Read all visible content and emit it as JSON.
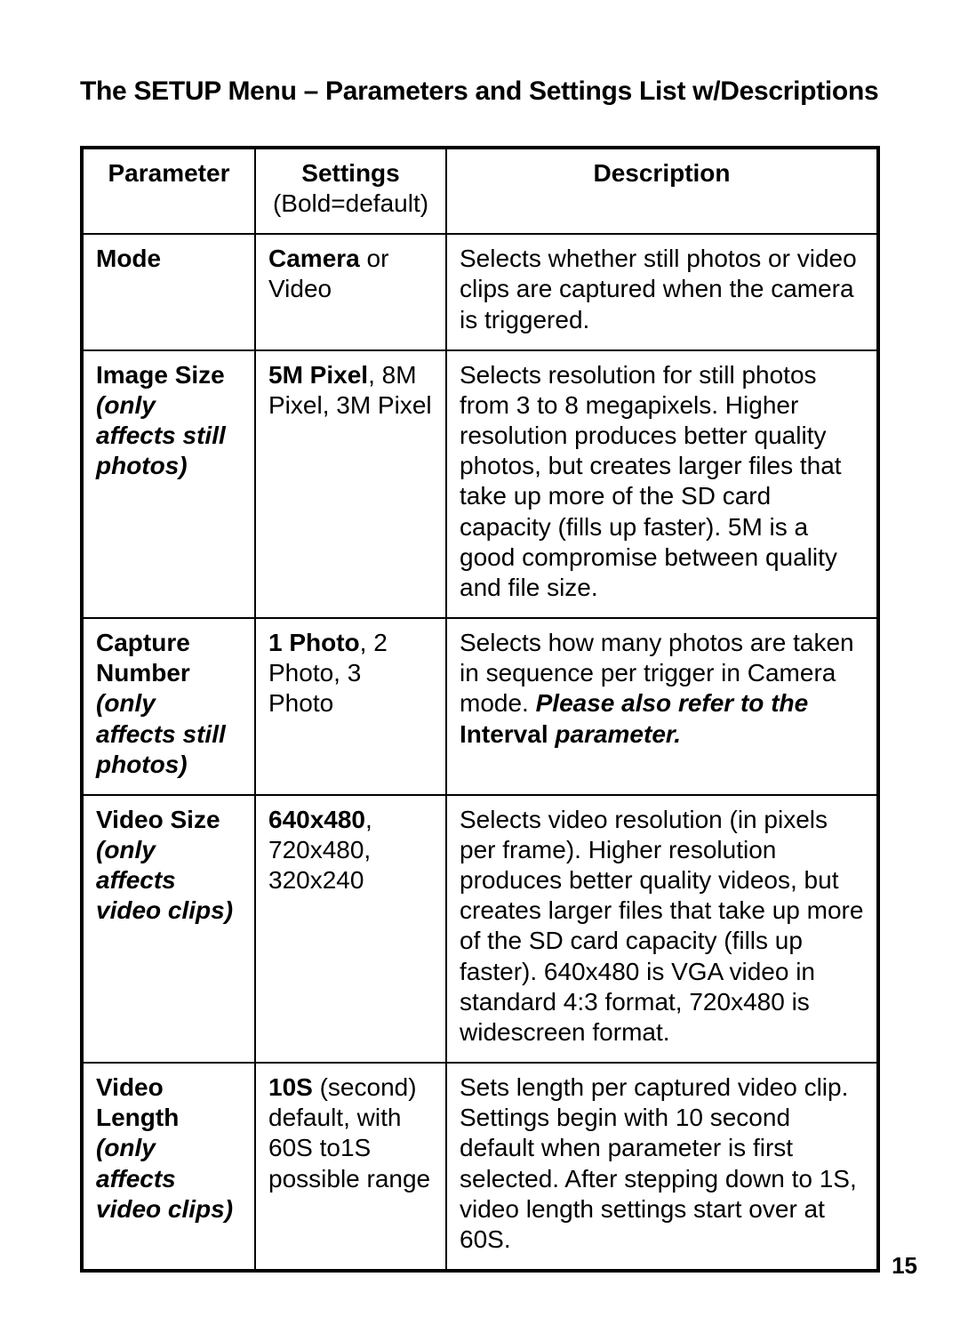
{
  "title": "The SETUP Menu – Parameters and Settings List w/Descriptions",
  "headers": {
    "parameter": "Parameter",
    "settings": "Settings",
    "settings_note": "(Bold=default)",
    "description": "Description"
  },
  "rows": [
    {
      "param_bold": "Mode",
      "param_italic": "",
      "set_bold": "Camera",
      "set_after_bold": " or Video",
      "desc": "Selects whether still photos or video clips are captured when the camera is triggered."
    },
    {
      "param_bold": "Image Size",
      "param_italic": "(only affects still photos)",
      "set_bold": "5M Pixel",
      "set_after_bold": ", 8M Pixel, 3M Pixel",
      "desc": "Selects resolution for still photos from 3 to 8 megapixels. Higher resolution produces better quality photos, but creates larger files that take up more of the SD card capacity (fills up faster). 5M is a good compromise between quality and file size."
    },
    {
      "param_bold": "Capture Number",
      "param_italic": "(only affects still photos)",
      "set_bold": "1 Photo",
      "set_after_bold": ", 2 Photo, 3 Photo",
      "desc_before": "Selects how many photos are taken in sequence per trigger in Camera mode. ",
      "desc_bi1": "Please also refer to the",
      "desc_mid": " ",
      "desc_b": "Interval",
      "desc_mid2": " ",
      "desc_bi2": "parameter."
    },
    {
      "param_bold": "Video Size",
      "param_italic": "(only affects video clips)",
      "set_bold": "640x480",
      "set_after_bold": ", 720x480, 320x240",
      "desc": "Selects video resolution (in pixels per frame). Higher resolution produces better quality videos, but creates larger files that take up more of the SD card capacity (fills up faster). 640x480 is VGA video in standard 4:3 format, 720x480 is widescreen format."
    },
    {
      "param_bold": "Video Length",
      "param_italic": "(only affects video clips)",
      "set_bold": "10S",
      "set_after_bold": " (second) default, with 60S to1S possible range",
      "desc": "Sets length per captured video clip. Settings begin with 10 second default when parameter is first selected. After stepping down to 1S, video length settings start over at 60S."
    }
  ],
  "page_number": "15"
}
